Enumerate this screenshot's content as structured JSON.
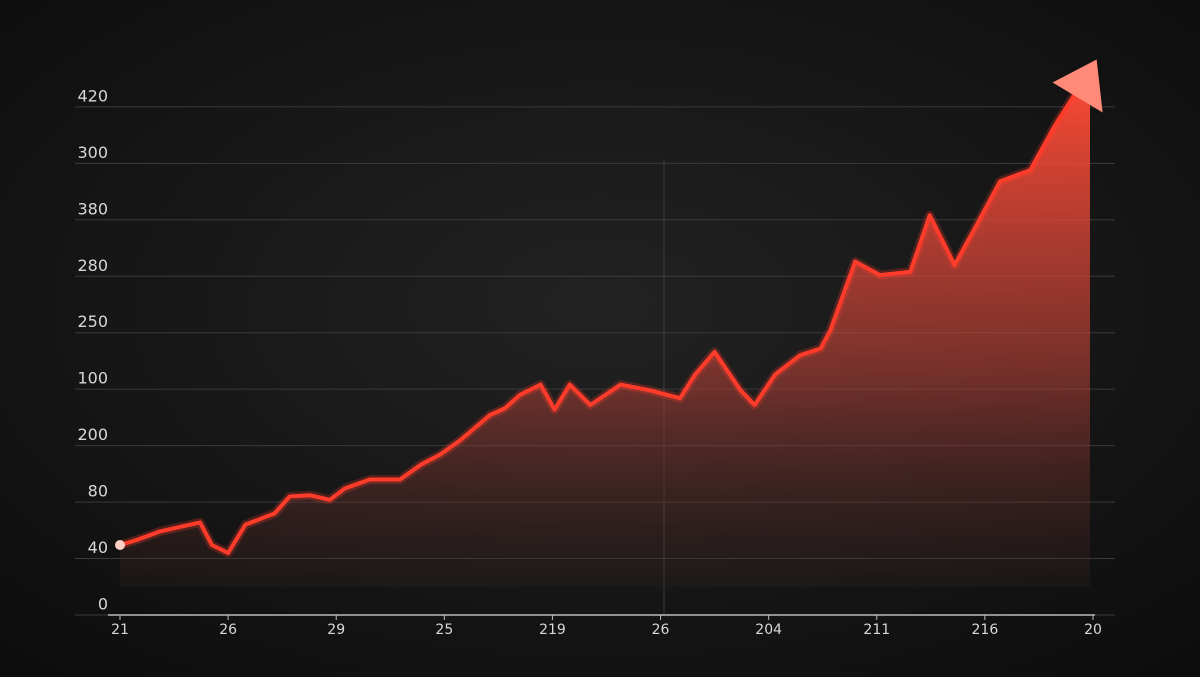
{
  "chart_data": {
    "type": "line",
    "color": "#ff3b2a",
    "fill": true,
    "grid": true,
    "x": [
      0,
      0.14,
      0.37,
      0.74,
      0.85,
      1.0,
      1.16,
      1.43,
      1.57,
      1.76,
      1.94,
      2.08,
      2.31,
      2.59,
      2.78,
      2.96,
      3.15,
      3.42,
      3.56,
      3.7,
      3.89,
      4.02,
      4.16,
      4.35,
      4.63,
      4.9,
      5.18,
      5.32,
      5.5,
      5.74,
      5.87,
      6.06,
      6.29,
      6.48,
      6.57,
      6.8,
      7.03,
      7.31,
      7.49,
      7.72,
      7.91,
      8.14,
      8.42,
      8.65,
      8.83
    ],
    "values": [
      62,
      66,
      74,
      82,
      62,
      55,
      80,
      90,
      105,
      106,
      102,
      112,
      120,
      120,
      133,
      142,
      155,
      177,
      183,
      195,
      204,
      182,
      204,
      186,
      204,
      199,
      192,
      213,
      233,
      199,
      186,
      213,
      230,
      236,
      252,
      313,
      301,
      304,
      354,
      310,
      343,
      384,
      394,
      434,
      461
    ],
    "xlim": [
      0,
      9
    ],
    "xticks": [
      {
        "value": 0,
        "label": "21"
      },
      {
        "value": 1,
        "label": "26"
      },
      {
        "value": 2,
        "label": "29"
      },
      {
        "value": 3,
        "label": "25"
      },
      {
        "value": 4,
        "label": "219"
      },
      {
        "value": 5,
        "label": "26"
      },
      {
        "value": 6,
        "label": "204"
      },
      {
        "value": 7,
        "label": "211"
      },
      {
        "value": 8,
        "label": "216"
      },
      {
        "value": 9,
        "label": "20"
      }
    ],
    "ylim": [
      0,
      480
    ],
    "yticks": [
      0,
      {
        "value": 50,
        "label": "40"
      },
      {
        "value": 100,
        "label": "80"
      },
      {
        "value": 150,
        "label": "200"
      },
      {
        "value": 200,
        "label": "100"
      },
      {
        "value": 250,
        "label": "250"
      },
      {
        "value": 300,
        "label": "280"
      },
      {
        "value": 350,
        "label": "380"
      },
      {
        "value": 400,
        "label": "300"
      },
      {
        "value": 450,
        "label": "420"
      }
    ]
  }
}
